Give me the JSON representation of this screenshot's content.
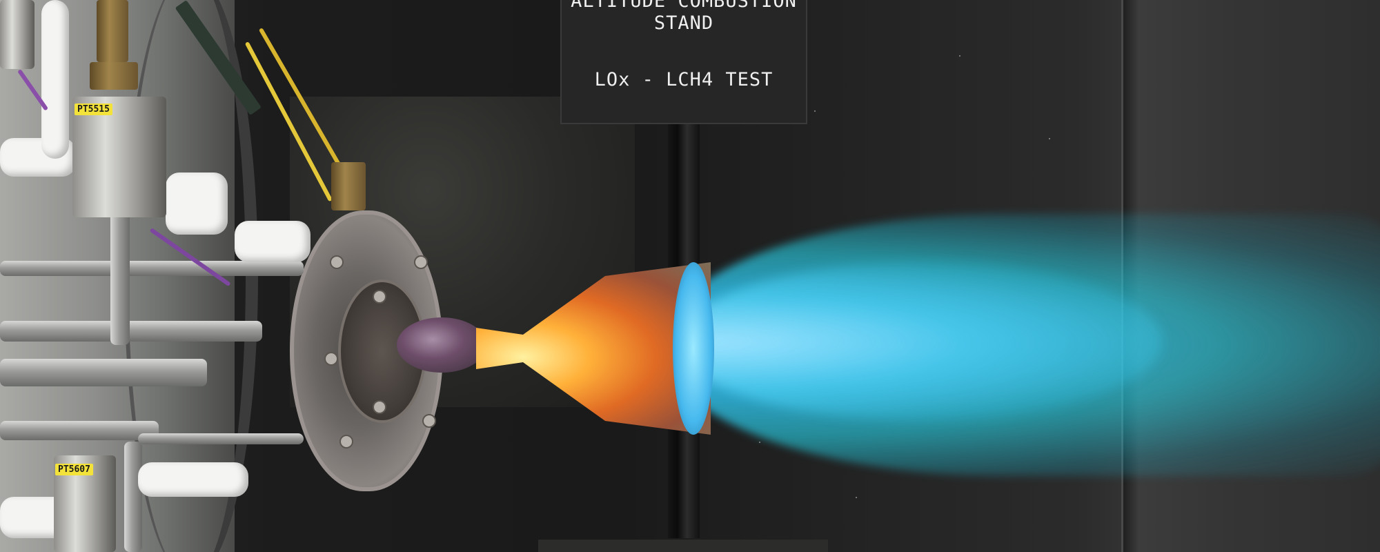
{
  "sign": {
    "line1": "ALTITUDE COMBUSTION",
    "line2": "STAND",
    "line3": "LOx - LCH4 TEST"
  },
  "sensor_tags": {
    "upper": "PT5515",
    "lower": "PT5607"
  },
  "colors": {
    "plume": "#3fc8e6",
    "nozzle_hot": "#ffb13a",
    "wall": "#1c1c1c",
    "tag": "#f2e23a"
  }
}
